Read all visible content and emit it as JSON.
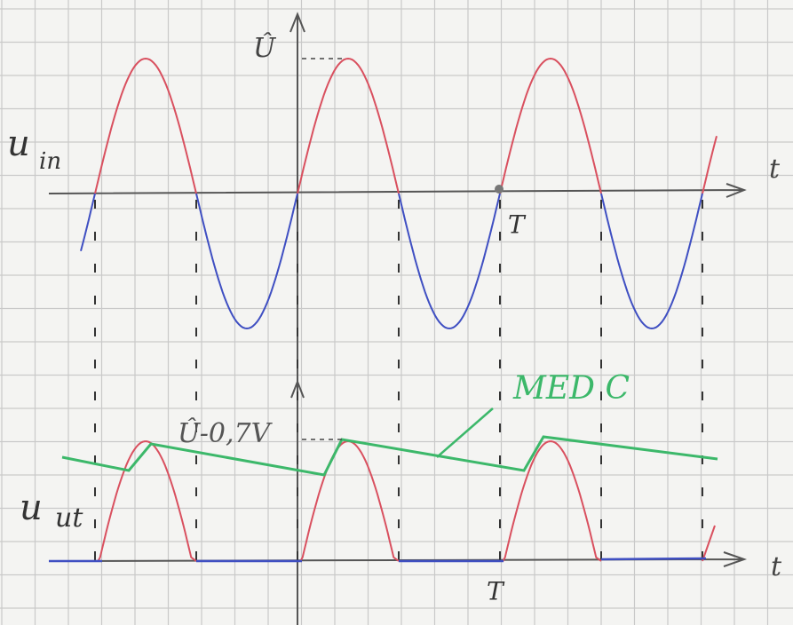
{
  "top_graph": {
    "axis_label_y": "Û",
    "signal_main": "u",
    "signal_sub": "in",
    "axis_label_x": "t",
    "period_label": "T"
  },
  "bottom_graph": {
    "peak_label": "Û-0,7V",
    "signal_main": "u",
    "signal_sub": "ut",
    "axis_label_x": "t",
    "period_label": "T",
    "annotation": "MED C"
  }
}
